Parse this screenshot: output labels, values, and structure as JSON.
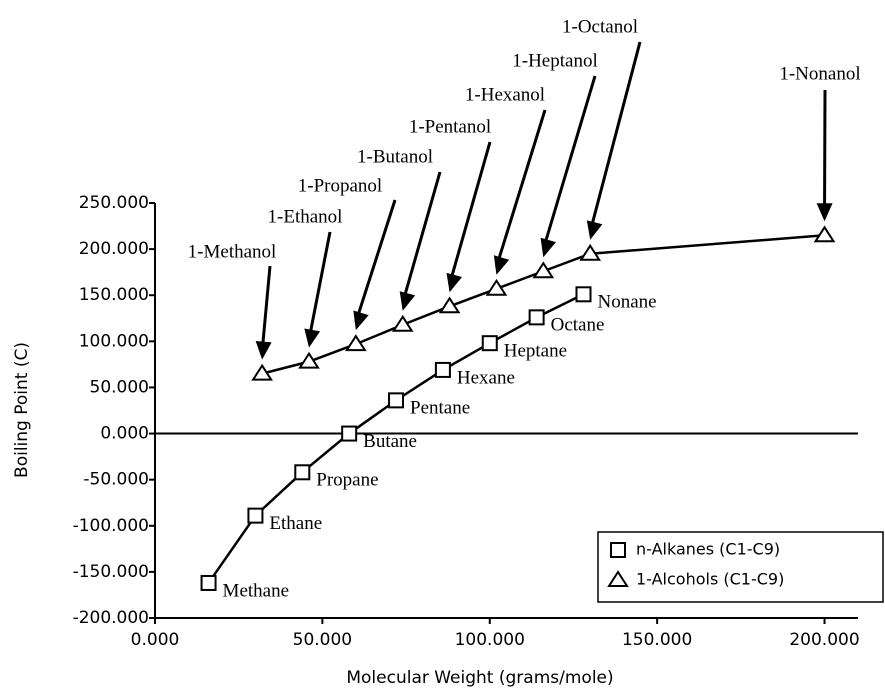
{
  "chart_data": {
    "type": "line",
    "x_label": "Molecular Weight  (grams/mole)",
    "y_label": "Boiling Point  (C)",
    "xlim": [
      0,
      210
    ],
    "ylim": [
      -200,
      250
    ],
    "xticks": [
      {
        "value": 0,
        "label": "0.000"
      },
      {
        "value": 50,
        "label": "50.000"
      },
      {
        "value": 100,
        "label": "100.000"
      },
      {
        "value": 150,
        "label": "150.000"
      },
      {
        "value": 200,
        "label": "200.000"
      }
    ],
    "yticks": [
      {
        "value": 250,
        "label": "250.000"
      },
      {
        "value": 200,
        "label": "200.000"
      },
      {
        "value": 150,
        "label": "150.000"
      },
      {
        "value": 100,
        "label": "100.000"
      },
      {
        "value": 50,
        "label": "50.000"
      },
      {
        "value": 0,
        "label": "0.000"
      },
      {
        "value": -50,
        "label": "-50.000"
      },
      {
        "value": -100,
        "label": "-100.000"
      },
      {
        "value": -150,
        "label": "-150.000"
      },
      {
        "value": -200,
        "label": "-200.000"
      }
    ],
    "series": [
      {
        "name": "n-Alkanes (C1-C9)",
        "color": "#000000",
        "marker": "square",
        "x": [
          16,
          30,
          44,
          58,
          72,
          86,
          100,
          114,
          128
        ],
        "values": [
          -162,
          -89,
          -42,
          0,
          36,
          69,
          98,
          126,
          151
        ],
        "point_labels": [
          "Methane",
          "Ethane",
          "Propane",
          "Butane",
          "Pentane",
          "Hexane",
          "Heptane",
          "Octane",
          "Nonane"
        ]
      },
      {
        "name": "1-Alcohols (C1-C9)",
        "color": "#000000",
        "marker": "triangle",
        "x": [
          32,
          46,
          60,
          74,
          88,
          102,
          116,
          130,
          200
        ],
        "values": [
          65,
          78,
          97,
          118,
          138,
          157,
          176,
          195,
          215
        ],
        "point_labels": [
          "1-Methanol",
          "1-Ethanol",
          "1-Propanol",
          "1-Butanol",
          "1-Pentanol",
          "1-Hexanol",
          "1-Heptanol",
          "1-Octanol",
          "1-Nonanol"
        ]
      }
    ]
  }
}
